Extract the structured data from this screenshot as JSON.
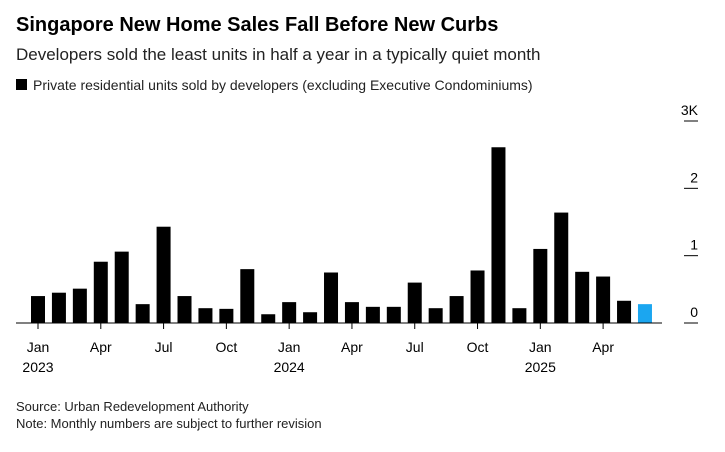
{
  "chart_data": {
    "type": "bar",
    "title": "Singapore New Home Sales Fall Before New Curbs",
    "subtitle": "Developers sold the least units in half a year in a typically quiet month",
    "series": [
      {
        "name": "Private residential units sold by developers (excluding Executive Condominiums)",
        "color": "#000000",
        "values": [
          400,
          450,
          510,
          910,
          1060,
          280,
          1430,
          400,
          220,
          210,
          800,
          130,
          310,
          160,
          750,
          310,
          240,
          240,
          600,
          220,
          400,
          780,
          2610,
          220,
          1100,
          1640,
          760,
          690,
          330,
          280
        ],
        "colors": [
          "#000000",
          "#000000",
          "#000000",
          "#000000",
          "#000000",
          "#000000",
          "#000000",
          "#000000",
          "#000000",
          "#000000",
          "#000000",
          "#000000",
          "#000000",
          "#000000",
          "#000000",
          "#000000",
          "#000000",
          "#000000",
          "#000000",
          "#000000",
          "#000000",
          "#000000",
          "#000000",
          "#000000",
          "#000000",
          "#000000",
          "#000000",
          "#000000",
          "#000000",
          "#1ba6f0"
        ]
      }
    ],
    "categories": [
      "Jan",
      null,
      null,
      "Apr",
      null,
      null,
      "Jul",
      null,
      null,
      "Oct",
      null,
      null,
      "Jan",
      null,
      null,
      "Apr",
      null,
      null,
      "Jul",
      null,
      null,
      "Oct",
      null,
      null,
      "Jan",
      null,
      null,
      "Apr",
      null,
      null
    ],
    "year_labels": [
      "2023",
      "2024",
      "2025"
    ],
    "ylim": [
      0,
      3000
    ],
    "yticks": [
      0,
      {
        "value": 1000,
        "label": "1"
      },
      {
        "value": 2000,
        "label": "2"
      },
      {
        "value": 3000,
        "label": "3K"
      }
    ],
    "source": "Source: Urban Redevelopment Authority",
    "note": "Note: Monthly numbers are subject to further revision"
  }
}
